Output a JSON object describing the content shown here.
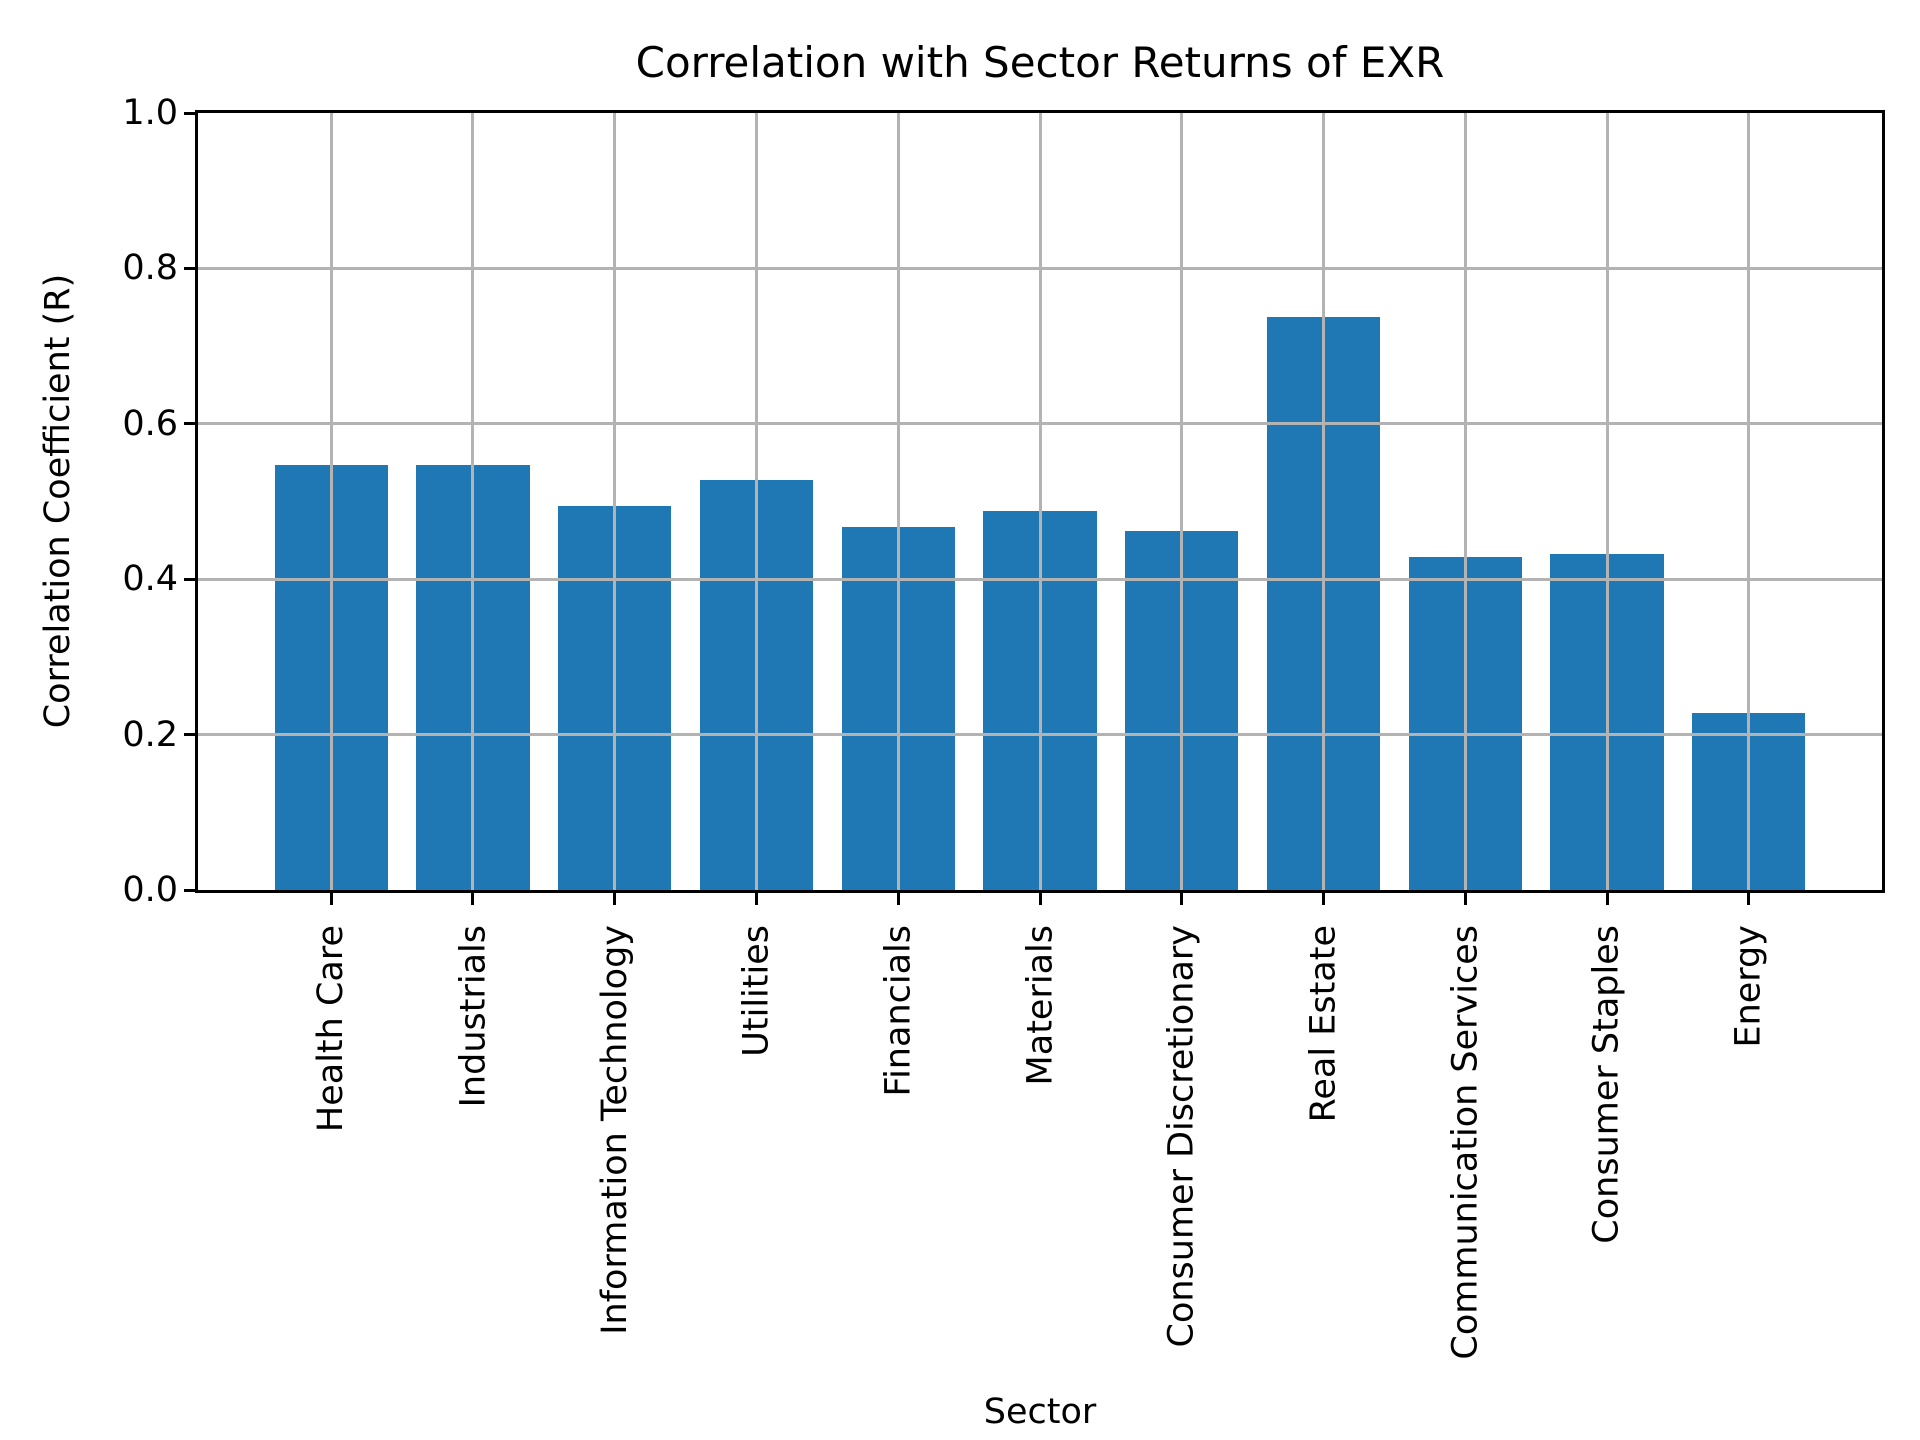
{
  "figure": {
    "background": "#ffffff"
  },
  "chart_data": {
    "type": "bar",
    "title": "Correlation with Sector Returns of EXR",
    "xlabel": "Sector",
    "ylabel": "Correlation Coefficient (R)",
    "categories": [
      "Health Care",
      "Industrials",
      "Information Technology",
      "Utilities",
      "Financials",
      "Materials",
      "Consumer Discretionary",
      "Real Estate",
      "Communication Services",
      "Consumer Staples",
      "Energy"
    ],
    "values": [
      0.547,
      0.547,
      0.494,
      0.528,
      0.467,
      0.488,
      0.462,
      0.737,
      0.428,
      0.432,
      0.228
    ],
    "ylim": [
      0.0,
      1.0
    ],
    "yticks": [
      "0.0",
      "0.2",
      "0.4",
      "0.6",
      "0.8",
      "1.0"
    ],
    "xtick_rotation": 90,
    "grid": true,
    "grid_over_bars": true,
    "legend": null,
    "bar_color": "#1f77b4",
    "grid_color": "#b3b3b3",
    "spine_color": "#000000",
    "text_color": "#000000"
  }
}
